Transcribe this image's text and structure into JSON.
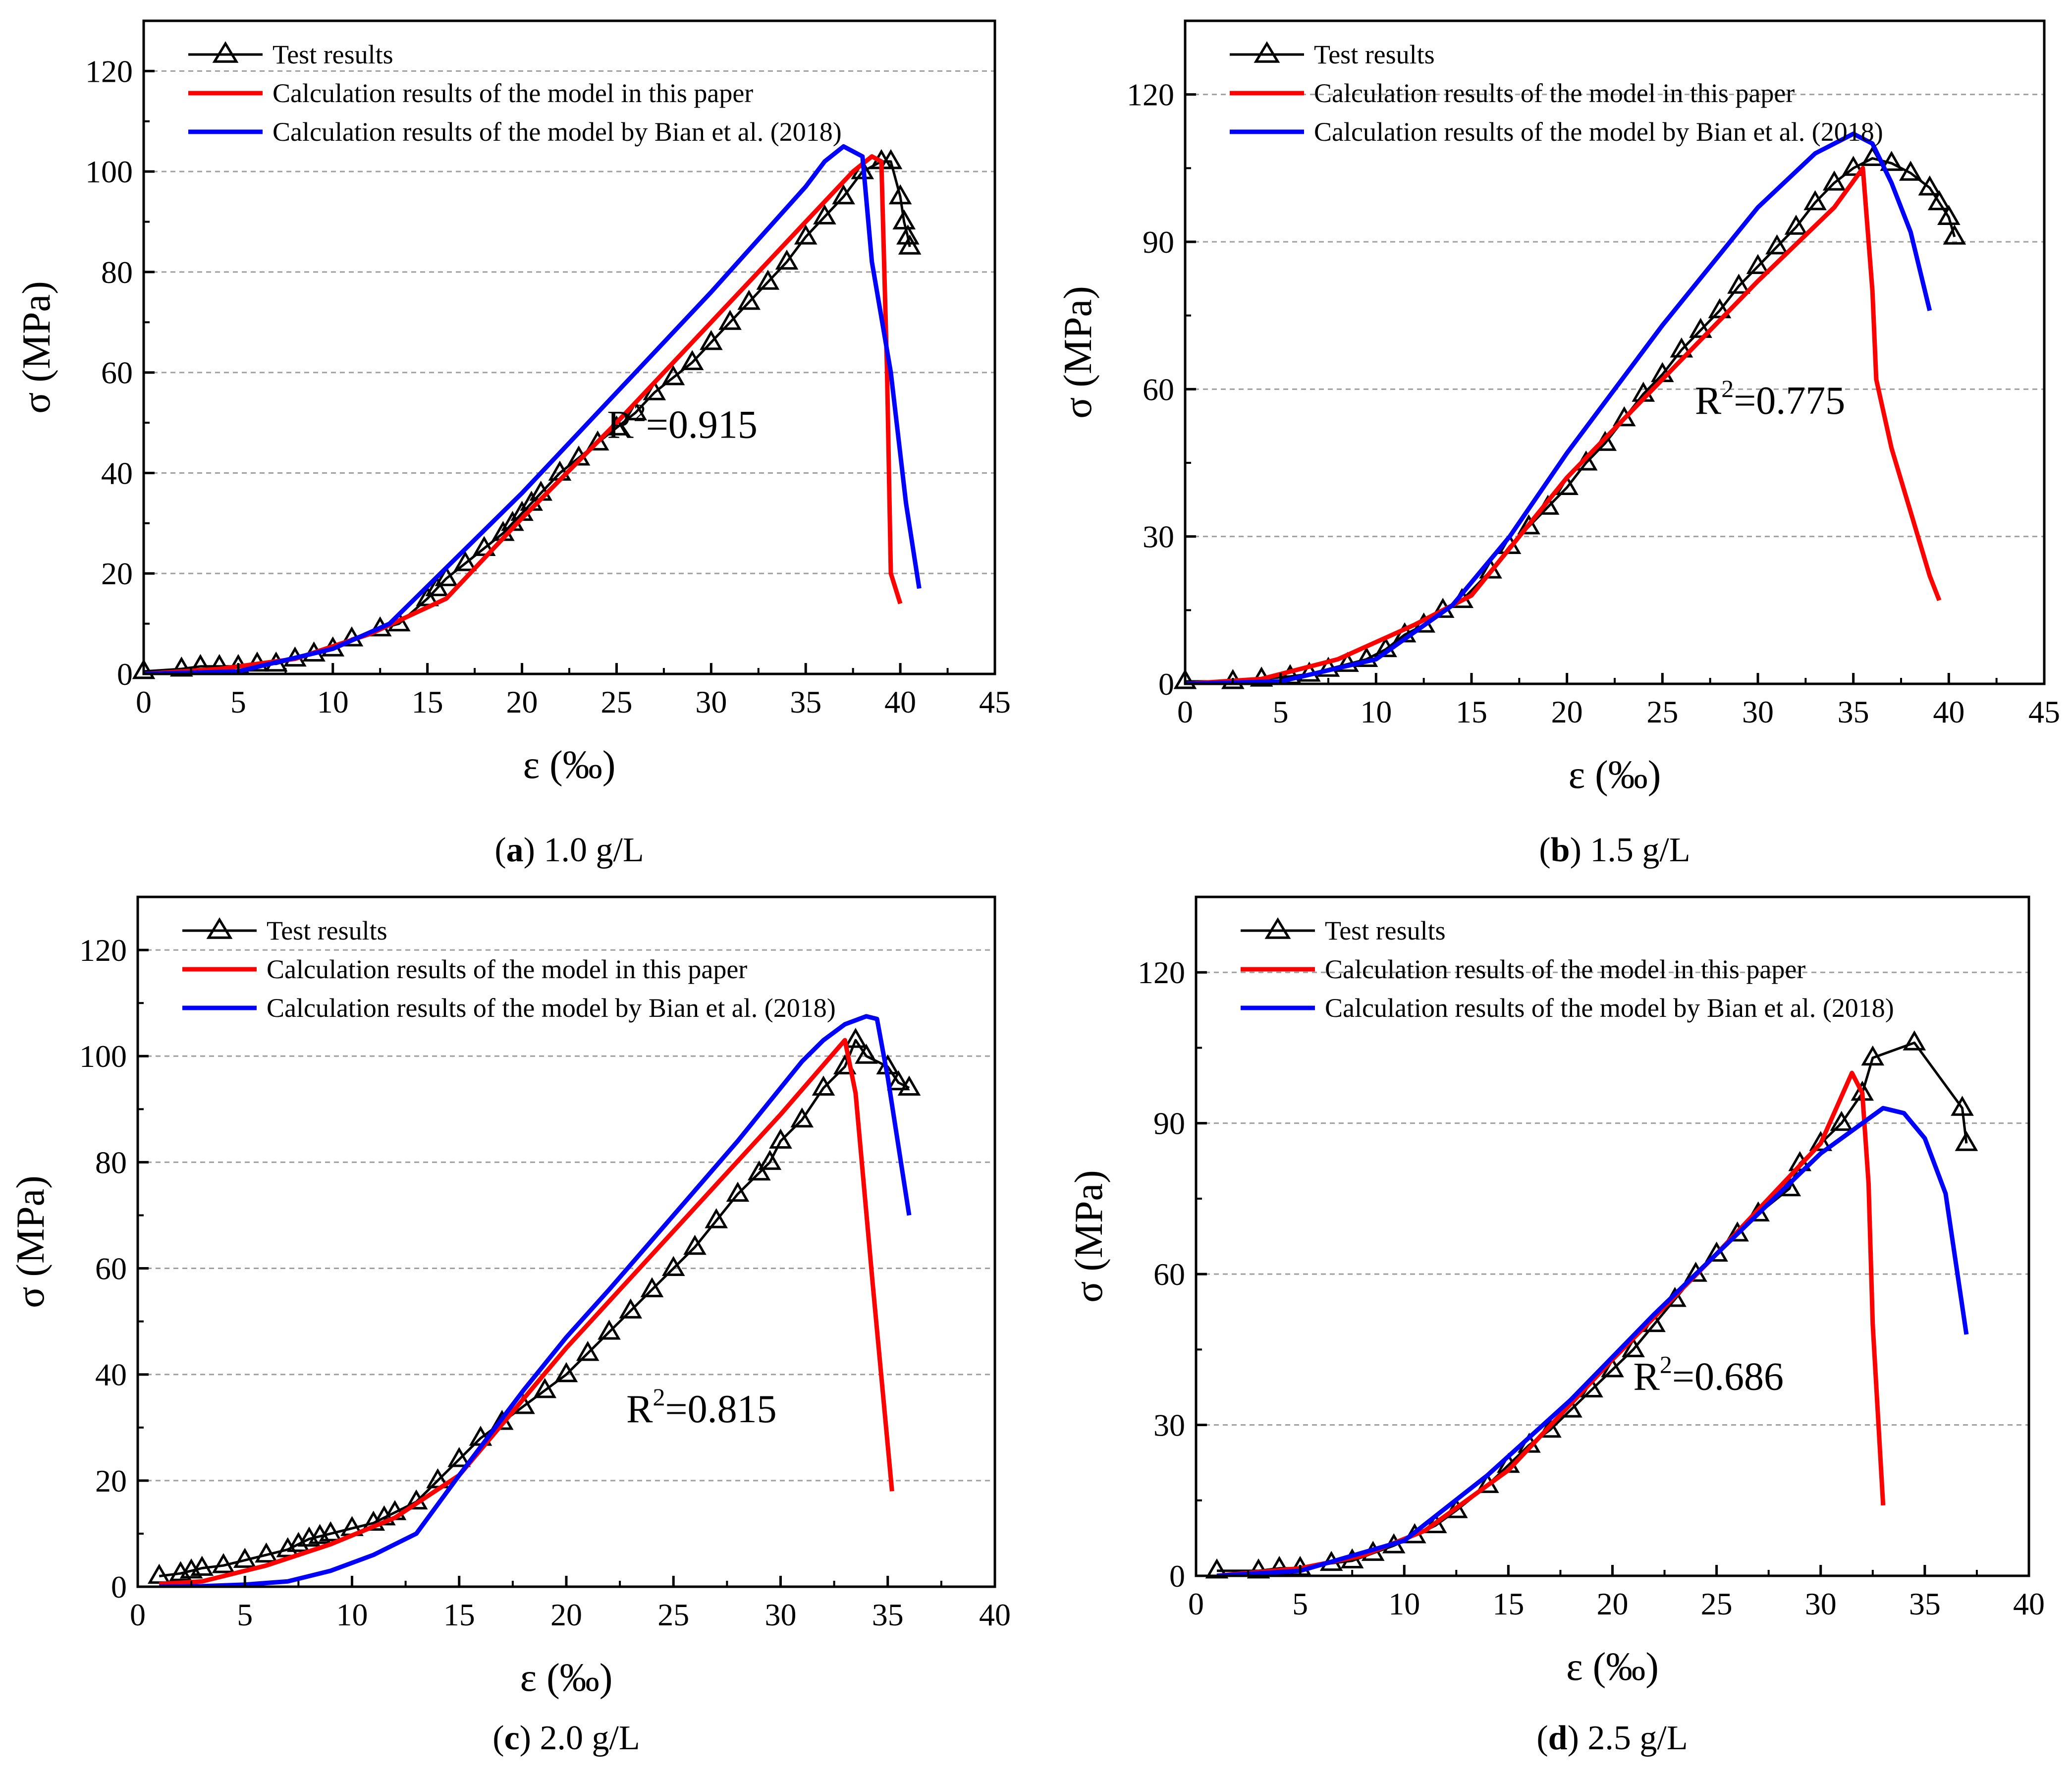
{
  "chart_data": [
    {
      "type": "line",
      "xlabel": "ε (‰)",
      "ylabel": "σ (MPa)",
      "xlim": [
        0,
        45
      ],
      "ylim": [
        0,
        130
      ],
      "xticks": [
        0,
        5,
        10,
        15,
        20,
        25,
        30,
        35,
        40,
        45
      ],
      "yticks": [
        0,
        20,
        40,
        60,
        80,
        100,
        120
      ],
      "grid": "horizontal dashed",
      "legend_position": "top-left",
      "caption": {
        "letter": "a",
        "text": " 1.0 g/L"
      },
      "r2": {
        "base": "R",
        "sup": "2",
        "text": "=0.915",
        "x": 24.5,
        "y": 47
      },
      "series": [
        {
          "name": "Test results",
          "color": "#000000",
          "marker": "triangle",
          "x": [
            0,
            2,
            3,
            4,
            5,
            6,
            7,
            8,
            9,
            10,
            11,
            12.5,
            13.5,
            15,
            15.5,
            16,
            17,
            18,
            19,
            19.5,
            20,
            20.5,
            21,
            22,
            23,
            24,
            25,
            26,
            27,
            28,
            29,
            30,
            31,
            32,
            33,
            34,
            35,
            36,
            37,
            38,
            39,
            39.5,
            40,
            40.2,
            40.4,
            40.5
          ],
          "y": [
            0.5,
            1,
            1.5,
            1.5,
            1.5,
            2,
            2,
            3,
            4,
            5,
            7,
            9,
            10,
            15,
            17,
            19,
            22,
            25,
            28,
            30,
            32,
            34,
            36,
            40,
            43,
            46,
            49,
            52,
            56,
            59,
            62,
            66,
            70,
            74,
            78,
            82,
            87,
            91,
            95,
            100,
            102,
            102,
            95,
            90,
            87,
            85
          ]
        },
        {
          "name": "Calculation results of the model in this paper",
          "color": "#ff0000",
          "x": [
            0,
            4,
            8,
            12,
            16,
            20,
            25,
            30,
            35,
            37.5,
            38.5,
            39,
            39.3,
            39.5,
            40
          ],
          "y": [
            0,
            1,
            3,
            8,
            15,
            31,
            50,
            70,
            90,
            100,
            103,
            102,
            60,
            20,
            14
          ]
        },
        {
          "name": "Calculation results of the model by Bian et al. (2018)",
          "color": "#0000ff",
          "x": [
            0,
            5,
            10,
            13,
            20,
            25,
            30,
            35,
            36,
            37,
            38,
            38.5,
            39.5,
            40.3,
            41
          ],
          "y": [
            0,
            0.5,
            5,
            10,
            36,
            56,
            76,
            97,
            102,
            105,
            103,
            82,
            60,
            34,
            17
          ]
        }
      ]
    },
    {
      "type": "line",
      "xlabel": "ε (‰)",
      "ylabel": "σ (MPa)",
      "xlim": [
        0,
        45
      ],
      "ylim": [
        0,
        135
      ],
      "xticks": [
        0,
        5,
        10,
        15,
        20,
        25,
        30,
        35,
        40,
        45
      ],
      "yticks": [
        0,
        30,
        60,
        90,
        120
      ],
      "grid": "horizontal dashed",
      "legend_position": "top-left",
      "caption": {
        "letter": "b",
        "text": " 1.5 g/L"
      },
      "r2": {
        "base": "R",
        "sup": "2",
        "text": "=0.775",
        "x": 26.7,
        "y": 55
      },
      "series": [
        {
          "name": "Test results",
          "color": "#000000",
          "marker": "triangle",
          "x": [
            0,
            2.5,
            4,
            5.5,
            6.5,
            7.5,
            8.5,
            9.5,
            10.5,
            11.5,
            12.5,
            13.5,
            14.5,
            16,
            17,
            18,
            19,
            20,
            21,
            22,
            23,
            24,
            25,
            26,
            27,
            28,
            29,
            30,
            31,
            32,
            33,
            34,
            35,
            36,
            37,
            38,
            39,
            39.5,
            40,
            40.3
          ],
          "y": [
            0.5,
            0.5,
            1,
            1.5,
            2,
            3,
            4,
            5,
            7,
            10,
            12,
            15,
            17,
            23,
            28,
            32,
            36,
            40,
            45,
            49,
            54,
            59,
            63,
            68,
            72,
            76,
            81,
            85,
            89,
            93,
            98,
            102,
            105,
            107,
            106,
            104,
            101,
            98,
            95,
            91
          ]
        },
        {
          "name": "Calculation results of the model in this paper",
          "color": "#ff0000",
          "x": [
            0,
            4,
            8,
            12,
            15,
            20,
            25,
            30,
            34,
            35.5,
            36,
            36.2,
            37,
            38,
            39,
            39.5
          ],
          "y": [
            0,
            1,
            5,
            12,
            18,
            42,
            62,
            82,
            97,
            105,
            80,
            62,
            48,
            35,
            22,
            17
          ]
        },
        {
          "name": "Calculation results of the model by Bian et al. (2018)",
          "color": "#0000ff",
          "x": [
            0,
            5,
            10,
            14,
            17,
            20,
            25,
            30,
            33,
            35,
            36,
            37,
            38,
            39
          ],
          "y": [
            0,
            0.5,
            5,
            16,
            30,
            47,
            73,
            97,
            108,
            112,
            110,
            102,
            92,
            76
          ]
        }
      ]
    },
    {
      "type": "line",
      "xlabel": "ε (‰)",
      "ylabel": "σ (MPa)",
      "xlim": [
        0,
        40
      ],
      "ylim": [
        0,
        130
      ],
      "xticks": [
        0,
        5,
        10,
        15,
        20,
        25,
        30,
        35,
        40
      ],
      "yticks": [
        0,
        20,
        40,
        60,
        80,
        100,
        120
      ],
      "grid": "horizontal dashed",
      "legend_position": "top-left",
      "caption": {
        "letter": "c",
        "text": " 2.0 g/L"
      },
      "r2": {
        "base": "R",
        "sup": "2",
        "text": "=0.815",
        "x": 22.8,
        "y": 31
      },
      "series": [
        {
          "name": "Test results",
          "color": "#000000",
          "marker": "triangle",
          "x": [
            1,
            2,
            2.5,
            3,
            4,
            5,
            6,
            7,
            7.5,
            8,
            8.5,
            9,
            10,
            11,
            11.5,
            12,
            13,
            14,
            15,
            16,
            17,
            18,
            19,
            20,
            21,
            22,
            23,
            24,
            25,
            26,
            27,
            28,
            29,
            29.5,
            30,
            31,
            32,
            33,
            33.5,
            34,
            35,
            35.5,
            36
          ],
          "y": [
            2,
            2.5,
            3,
            3.5,
            4,
            5,
            6,
            7,
            8,
            9,
            9.5,
            10,
            11,
            12,
            13,
            14,
            16,
            20,
            24,
            28,
            31,
            34,
            37,
            40,
            44,
            48,
            52,
            56,
            60,
            64,
            69,
            74,
            78,
            80,
            84,
            88,
            94,
            98,
            103,
            100,
            98,
            95,
            94
          ]
        },
        {
          "name": "Calculation results of the model in this paper",
          "color": "#ff0000",
          "x": [
            1,
            3,
            6,
            9,
            12,
            15,
            20,
            25,
            30,
            33,
            33.5,
            34.3,
            35.2
          ],
          "y": [
            0.5,
            1,
            4,
            8,
            13,
            21,
            45,
            67,
            89,
            103,
            93,
            57,
            18
          ]
        },
        {
          "name": "Calculation results of the model by Bian et al. (2018)",
          "color": "#0000ff",
          "x": [
            1,
            3,
            5,
            7,
            9,
            11,
            13,
            15,
            18,
            20,
            22,
            25,
            28,
            31,
            32,
            33,
            34,
            34.5,
            35,
            36
          ],
          "y": [
            0,
            0.1,
            0.4,
            1,
            3,
            6,
            10,
            21,
            37,
            47,
            56,
            70,
            84,
            99,
            103,
            106,
            107.5,
            107,
            96,
            70
          ]
        }
      ]
    },
    {
      "type": "line",
      "xlabel": "ε (‰)",
      "ylabel": "σ (MPa)",
      "xlim": [
        0,
        40
      ],
      "ylim": [
        0,
        135
      ],
      "xticks": [
        0,
        5,
        10,
        15,
        20,
        25,
        30,
        35,
        40
      ],
      "yticks": [
        0,
        30,
        60,
        90,
        120
      ],
      "grid": "horizontal dashed",
      "legend_position": "top-left",
      "caption": {
        "letter": "d",
        "text": " 2.5 g/L"
      },
      "r2": {
        "base": "R",
        "sup": "2",
        "text": "=0.686",
        "x": 21,
        "y": 37
      },
      "series": [
        {
          "name": "Test results",
          "color": "#000000",
          "marker": "triangle",
          "x": [
            1,
            3,
            4,
            5,
            6.5,
            7.5,
            8.5,
            9.5,
            10.5,
            11.5,
            12.5,
            14,
            15,
            16,
            17,
            18,
            19,
            20,
            21,
            22,
            23,
            24,
            25,
            26,
            27,
            28.5,
            29,
            30,
            31,
            32,
            32.5,
            34.5,
            36.8,
            37
          ],
          "y": [
            1,
            1,
            1.5,
            1.5,
            2.5,
            3,
            4.5,
            6,
            8,
            10,
            13,
            18,
            22,
            26,
            29,
            33,
            37,
            41,
            45,
            50,
            55,
            60,
            64,
            68,
            72,
            77,
            82,
            86,
            90,
            96,
            103,
            106,
            93,
            86
          ]
        },
        {
          "name": "Calculation results of the model in this paper",
          "color": "#ff0000",
          "x": [
            1,
            5,
            8,
            11,
            15,
            20,
            25,
            30,
            31.5,
            32,
            32.3,
            32.5,
            33
          ],
          "y": [
            0,
            1.5,
            4,
            9,
            21,
            43,
            64,
            86,
            100,
            96,
            78,
            50,
            14
          ]
        },
        {
          "name": "Calculation results of the model by Bian et al. (2018)",
          "color": "#0000ff",
          "x": [
            1,
            5,
            10,
            14,
            18,
            22,
            26,
            30,
            32,
            33,
            34,
            35,
            36,
            37
          ],
          "y": [
            0,
            1,
            7,
            20,
            35,
            52,
            68,
            84,
            90,
            93,
            92,
            87,
            76,
            48
          ]
        }
      ]
    }
  ]
}
